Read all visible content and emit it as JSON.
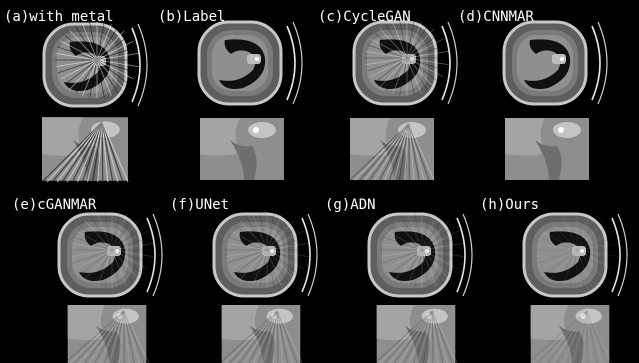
{
  "panels": [
    {
      "label": "(a)with metal"
    },
    {
      "label": "(b)Label"
    },
    {
      "label": "(c)CycleGAN"
    },
    {
      "label": "(d)CNNMAR"
    },
    {
      "label": "(e)cGANMAR"
    },
    {
      "label": "(f)UNet"
    },
    {
      "label": "(g)ADN"
    },
    {
      "label": "(h)Ours"
    }
  ]
}
